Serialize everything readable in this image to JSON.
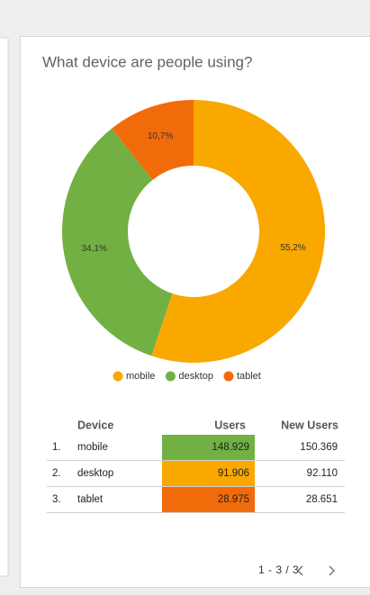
{
  "chart_data": {
    "type": "donut",
    "title": "What device are people using?",
    "categories": [
      "mobile",
      "desktop",
      "tablet"
    ],
    "values": [
      55.2,
      34.1,
      10.7
    ],
    "value_labels": [
      "55,2%",
      "34,1%",
      "10,7%"
    ],
    "colors": [
      "#f9a800",
      "#72b043",
      "#f26b0a"
    ]
  },
  "table": {
    "columns": [
      "Device",
      "Users",
      "New Users"
    ],
    "rows": [
      [
        "1.",
        "mobile",
        "148.929",
        "150.369"
      ],
      [
        "2.",
        "desktop",
        "91.906",
        "92.110"
      ],
      [
        "3.",
        "tablet",
        "28.975",
        "28.651"
      ]
    ],
    "cell_colors": [
      "#72b043",
      "#f9a800",
      "#f26b0a"
    ]
  },
  "pagination": "1 - 3 / 3"
}
